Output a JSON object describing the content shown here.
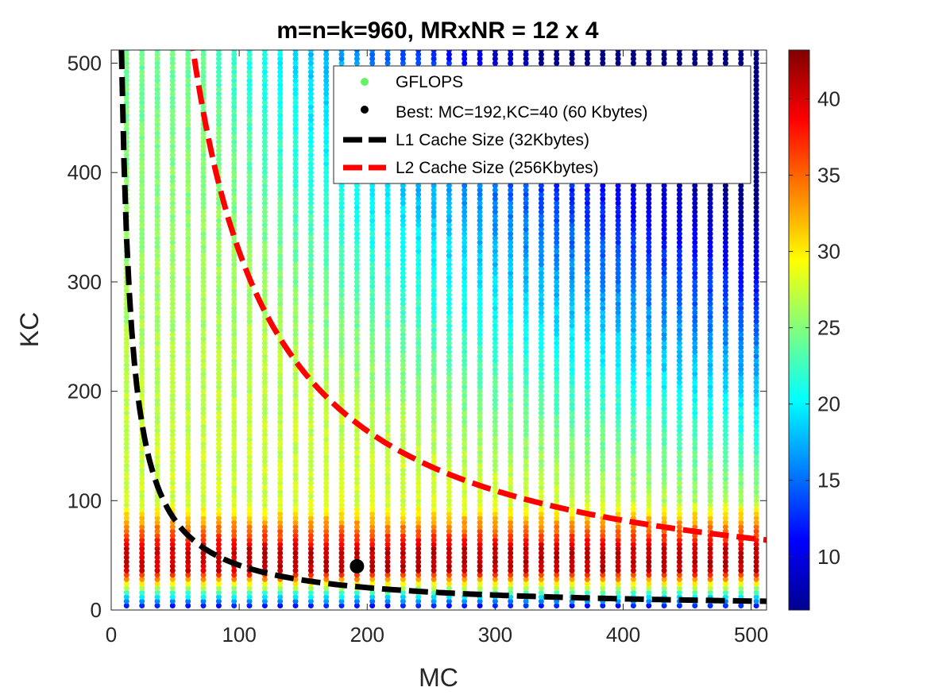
{
  "chart_data": {
    "type": "scatter",
    "title": "m=n=k=960, MRxNR = 12 x 4",
    "xlabel": "MC",
    "ylabel": "KC",
    "xlim": [
      0,
      512
    ],
    "ylim": [
      0,
      512
    ],
    "xticks": [
      0,
      100,
      200,
      300,
      400,
      500
    ],
    "yticks": [
      0,
      100,
      200,
      300,
      400,
      500
    ],
    "grid": false,
    "legend_position": "top-right",
    "mc_values": [
      12,
      24,
      36,
      48,
      60,
      72,
      84,
      96,
      108,
      120,
      132,
      144,
      156,
      168,
      180,
      192,
      204,
      216,
      228,
      240,
      252,
      264,
      276,
      288,
      300,
      312,
      324,
      336,
      348,
      360,
      372,
      384,
      396,
      408,
      420,
      432,
      444,
      456,
      468,
      480,
      492,
      504
    ],
    "kc_values": {
      "start": 4,
      "end": 512,
      "step": 4
    },
    "color_value": "GFLOPS",
    "series": [
      {
        "name": "GFLOPS",
        "kind": "scatter",
        "color": "#66f266"
      },
      {
        "name": "Best: MC=192,KC=40 (60 Kbytes)",
        "kind": "point",
        "x": 192,
        "y": 40,
        "color": "#000000"
      },
      {
        "name": "L1 Cache Size  (32Kbytes)",
        "kind": "curve",
        "cache_kbytes": 32,
        "bytes_per_element": 8,
        "color": "#000000"
      },
      {
        "name": "L2 Cache Size (256Kbytes)",
        "kind": "curve",
        "cache_kbytes": 256,
        "bytes_per_element": 8,
        "color": "#ff0000"
      }
    ],
    "colorbar": {
      "range": [
        6.5,
        43.2
      ],
      "ticks": [
        10,
        15,
        20,
        25,
        30,
        35,
        40
      ],
      "colormap": "jet"
    }
  }
}
